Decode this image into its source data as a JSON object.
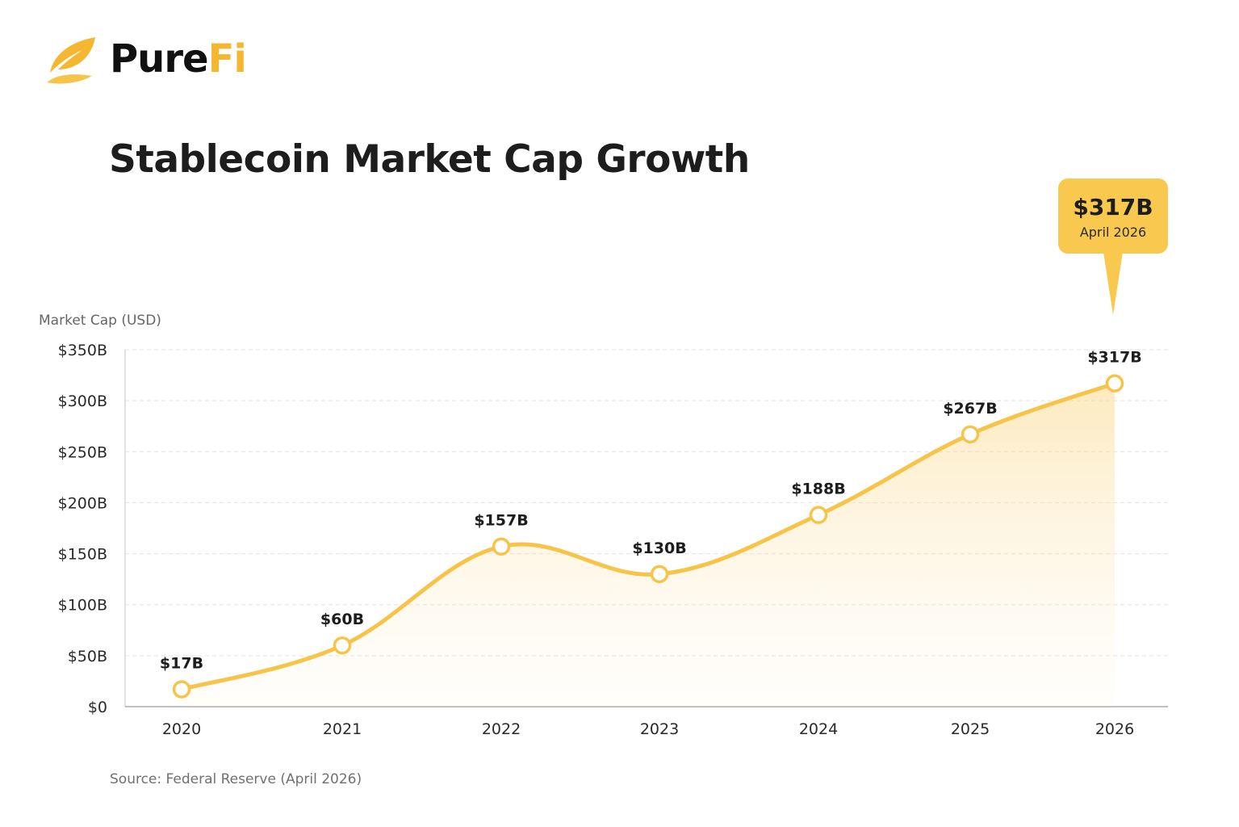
{
  "brand": {
    "name_part1": "Pure",
    "name_part2": "Fi",
    "logo_icon": "leaf-icon",
    "colors": {
      "accent": "#f5b731",
      "line": "#f7c44a",
      "callout": "#f9c84e",
      "text": "#1d1d1d"
    }
  },
  "title": "Stablecoin Market Cap Growth",
  "source": "Source: Federal Reserve (April 2026)",
  "chart_data": {
    "type": "area",
    "title": "Stablecoin Market Cap Growth",
    "xlabel": "",
    "ylabel": "Market Cap (USD)",
    "ylim": [
      0,
      350
    ],
    "yticks": [
      0,
      50,
      100,
      150,
      200,
      250,
      300,
      350
    ],
    "ytick_labels": [
      "$0",
      "$50B",
      "$100B",
      "$150B",
      "$200B",
      "$250B",
      "$300B",
      "$350B"
    ],
    "categories": [
      "2020",
      "2021",
      "2022",
      "2023",
      "2024",
      "2025",
      "2026"
    ],
    "values": [
      17,
      60,
      157,
      130,
      188,
      267,
      317
    ],
    "data_labels": [
      "$17B",
      "$60B",
      "$157B",
      "$130B",
      "$188B",
      "$267B",
      "$317B"
    ],
    "grid": true,
    "callout": {
      "value": "$317B",
      "label": "April 2026",
      "category": "2026"
    }
  }
}
